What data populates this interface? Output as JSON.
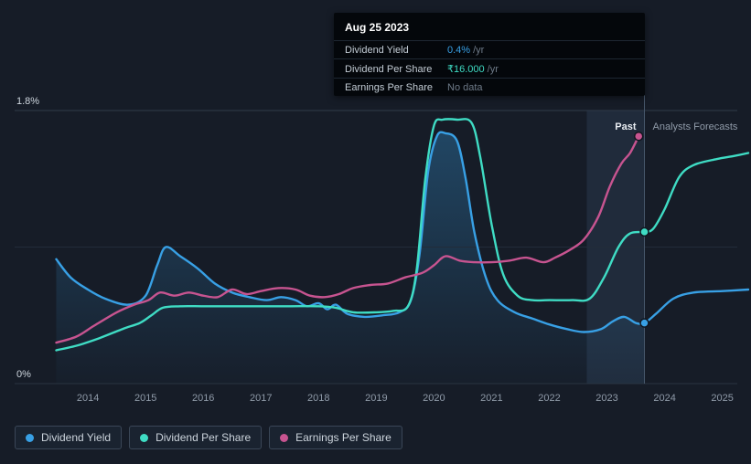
{
  "tooltip": {
    "date": "Aug 25 2023",
    "rows": [
      {
        "label": "Dividend Yield",
        "value": "0.4%",
        "suffix": "/yr",
        "value_color": "#38a0e5"
      },
      {
        "label": "Dividend Per Share",
        "value": "₹16.000",
        "suffix": "/yr",
        "value_color": "#3fdcc4"
      },
      {
        "label": "Earnings Per Share",
        "value": "No data",
        "suffix": "",
        "value_color": "#6e7a88"
      }
    ]
  },
  "legend": [
    {
      "label": "Dividend Yield",
      "color": "#38a0e5"
    },
    {
      "label": "Dividend Per Share",
      "color": "#3fdcc4"
    },
    {
      "label": "Earnings Per Share",
      "color": "#c75490"
    }
  ],
  "chart_data": {
    "type": "line",
    "ylim": [
      0,
      1.8
    ],
    "xlim": [
      2013.3,
      2025.45
    ],
    "y_axis_labels": [
      "1.8%",
      "0%"
    ],
    "x_ticks": [
      2014,
      2015,
      2016,
      2017,
      2018,
      2019,
      2020,
      2021,
      2022,
      2023,
      2024,
      2025
    ],
    "divider_x": 2023.65,
    "highlight_band": [
      2022.65,
      2023.65
    ],
    "band_color": "rgba(96,138,186,0.14)",
    "past_label": "Past",
    "forecast_label": "Analysts Forecasts",
    "grid": true,
    "legend_position": "bottom-left",
    "series": [
      {
        "name": "Dividend Yield",
        "color": "#38a0e5",
        "area": true,
        "marker": [
          2023.65,
          0.4
        ],
        "points": [
          [
            2013.45,
            0.82
          ],
          [
            2013.7,
            0.7
          ],
          [
            2014.0,
            0.62
          ],
          [
            2014.3,
            0.56
          ],
          [
            2014.7,
            0.52
          ],
          [
            2015.0,
            0.58
          ],
          [
            2015.2,
            0.78
          ],
          [
            2015.35,
            0.9
          ],
          [
            2015.6,
            0.84
          ],
          [
            2015.9,
            0.76
          ],
          [
            2016.2,
            0.66
          ],
          [
            2016.5,
            0.6
          ],
          [
            2016.8,
            0.57
          ],
          [
            2017.1,
            0.55
          ],
          [
            2017.35,
            0.57
          ],
          [
            2017.6,
            0.55
          ],
          [
            2017.8,
            0.51
          ],
          [
            2018.0,
            0.53
          ],
          [
            2018.15,
            0.49
          ],
          [
            2018.3,
            0.52
          ],
          [
            2018.5,
            0.46
          ],
          [
            2018.8,
            0.44
          ],
          [
            2019.1,
            0.45
          ],
          [
            2019.4,
            0.47
          ],
          [
            2019.6,
            0.55
          ],
          [
            2019.75,
            0.85
          ],
          [
            2019.9,
            1.4
          ],
          [
            2020.05,
            1.63
          ],
          [
            2020.2,
            1.65
          ],
          [
            2020.4,
            1.6
          ],
          [
            2020.55,
            1.35
          ],
          [
            2020.7,
            1.0
          ],
          [
            2020.9,
            0.7
          ],
          [
            2021.1,
            0.55
          ],
          [
            2021.4,
            0.47
          ],
          [
            2021.7,
            0.43
          ],
          [
            2022.0,
            0.39
          ],
          [
            2022.3,
            0.36
          ],
          [
            2022.6,
            0.34
          ],
          [
            2022.9,
            0.36
          ],
          [
            2023.1,
            0.41
          ],
          [
            2023.3,
            0.44
          ],
          [
            2023.5,
            0.4
          ],
          [
            2023.65,
            0.4
          ],
          [
            2023.85,
            0.46
          ],
          [
            2024.15,
            0.56
          ],
          [
            2024.5,
            0.6
          ],
          [
            2025.0,
            0.61
          ],
          [
            2025.45,
            0.62
          ]
        ]
      },
      {
        "name": "Dividend Per Share",
        "color": "#3fdcc4",
        "area": false,
        "marker": [
          2023.65,
          1.0
        ],
        "points": [
          [
            2013.45,
            0.22
          ],
          [
            2013.8,
            0.25
          ],
          [
            2014.2,
            0.3
          ],
          [
            2014.6,
            0.36
          ],
          [
            2014.9,
            0.4
          ],
          [
            2015.1,
            0.45
          ],
          [
            2015.3,
            0.5
          ],
          [
            2015.6,
            0.51
          ],
          [
            2016.0,
            0.51
          ],
          [
            2016.5,
            0.51
          ],
          [
            2017.0,
            0.51
          ],
          [
            2017.5,
            0.51
          ],
          [
            2018.0,
            0.51
          ],
          [
            2018.3,
            0.5
          ],
          [
            2018.6,
            0.47
          ],
          [
            2019.0,
            0.47
          ],
          [
            2019.3,
            0.48
          ],
          [
            2019.55,
            0.51
          ],
          [
            2019.7,
            0.75
          ],
          [
            2019.85,
            1.35
          ],
          [
            2020.0,
            1.7
          ],
          [
            2020.15,
            1.74
          ],
          [
            2020.4,
            1.74
          ],
          [
            2020.65,
            1.72
          ],
          [
            2020.8,
            1.5
          ],
          [
            2021.0,
            1.05
          ],
          [
            2021.2,
            0.72
          ],
          [
            2021.45,
            0.58
          ],
          [
            2021.7,
            0.55
          ],
          [
            2022.0,
            0.55
          ],
          [
            2022.4,
            0.55
          ],
          [
            2022.7,
            0.56
          ],
          [
            2022.95,
            0.7
          ],
          [
            2023.2,
            0.9
          ],
          [
            2023.4,
            0.99
          ],
          [
            2023.65,
            1.0
          ],
          [
            2023.8,
            1.02
          ],
          [
            2024.0,
            1.15
          ],
          [
            2024.25,
            1.36
          ],
          [
            2024.5,
            1.44
          ],
          [
            2024.9,
            1.48
          ],
          [
            2025.2,
            1.5
          ],
          [
            2025.45,
            1.52
          ]
        ]
      },
      {
        "name": "Earnings Per Share",
        "color": "#c75490",
        "area": false,
        "marker": [
          2023.55,
          1.63
        ],
        "points": [
          [
            2013.45,
            0.27
          ],
          [
            2013.8,
            0.31
          ],
          [
            2014.1,
            0.38
          ],
          [
            2014.5,
            0.47
          ],
          [
            2014.8,
            0.52
          ],
          [
            2015.05,
            0.55
          ],
          [
            2015.25,
            0.6
          ],
          [
            2015.5,
            0.58
          ],
          [
            2015.75,
            0.6
          ],
          [
            2016.0,
            0.58
          ],
          [
            2016.25,
            0.57
          ],
          [
            2016.5,
            0.62
          ],
          [
            2016.75,
            0.59
          ],
          [
            2017.0,
            0.61
          ],
          [
            2017.3,
            0.63
          ],
          [
            2017.6,
            0.62
          ],
          [
            2017.85,
            0.58
          ],
          [
            2018.1,
            0.57
          ],
          [
            2018.35,
            0.59
          ],
          [
            2018.6,
            0.63
          ],
          [
            2018.9,
            0.65
          ],
          [
            2019.2,
            0.66
          ],
          [
            2019.5,
            0.7
          ],
          [
            2019.8,
            0.73
          ],
          [
            2020.0,
            0.78
          ],
          [
            2020.2,
            0.84
          ],
          [
            2020.45,
            0.81
          ],
          [
            2020.7,
            0.8
          ],
          [
            2021.0,
            0.8
          ],
          [
            2021.3,
            0.81
          ],
          [
            2021.6,
            0.83
          ],
          [
            2021.9,
            0.8
          ],
          [
            2022.1,
            0.83
          ],
          [
            2022.35,
            0.88
          ],
          [
            2022.6,
            0.95
          ],
          [
            2022.85,
            1.1
          ],
          [
            2023.05,
            1.3
          ],
          [
            2023.25,
            1.45
          ],
          [
            2023.4,
            1.52
          ],
          [
            2023.55,
            1.63
          ]
        ]
      }
    ]
  }
}
